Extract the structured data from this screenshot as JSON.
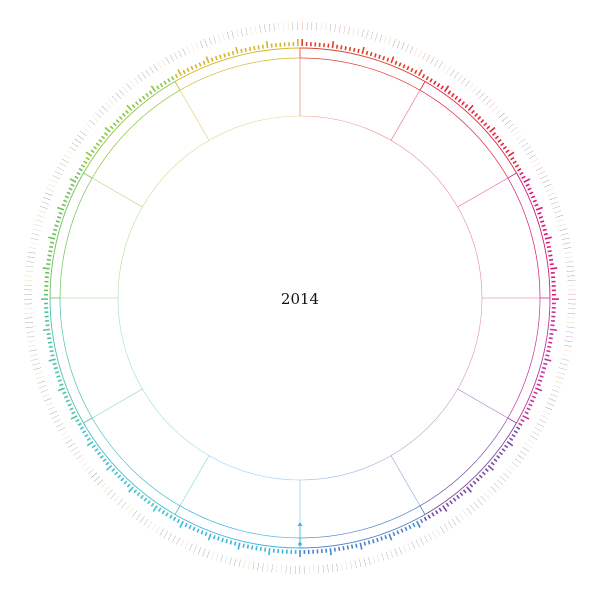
{
  "year": "2014",
  "month_colors": [
    "#e0402a",
    "#e4233e",
    "#d81b7a",
    "#c2379a",
    "#7a4aa0",
    "#4b84c8",
    "#3bb6e0",
    "#46c1c9",
    "#4fc3a6",
    "#6cc25a",
    "#8cc63f",
    "#d6b52a"
  ],
  "weekend_color": "#e8a34a",
  "marker_icon": "triangle-marker-icon"
}
